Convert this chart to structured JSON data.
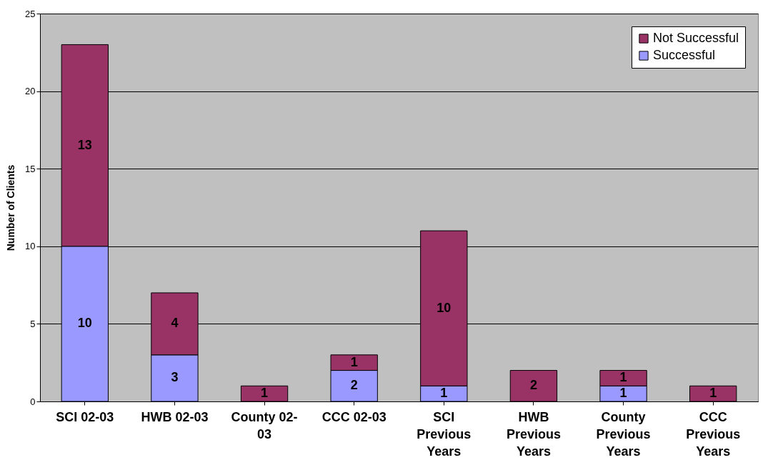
{
  "chart_data": {
    "type": "bar",
    "stacked": true,
    "ylabel": "Number of Clients",
    "categories": [
      "SCI 02-03",
      "HWB 02-03",
      "County 02-03",
      "CCC 02-03",
      "SCI Previous Years",
      "HWB Previous Years",
      "County Previous Years",
      "CCC Previous Years"
    ],
    "series": [
      {
        "name": "Successful",
        "color": "#9999ff",
        "values": [
          10,
          3,
          0,
          2,
          1,
          0,
          1,
          0
        ],
        "value_labels": [
          "10",
          "3",
          null,
          "2",
          "1",
          null,
          "1",
          null
        ]
      },
      {
        "name": "Not Successful",
        "color": "#993366",
        "values": [
          13,
          4,
          1,
          1,
          10,
          2,
          1,
          1
        ],
        "value_labels": [
          "13",
          "4",
          "1",
          "1",
          "10",
          "2",
          "1",
          "1"
        ]
      }
    ],
    "ylim": [
      0,
      25
    ],
    "yticks": [
      0,
      5,
      10,
      15,
      20,
      25
    ],
    "grid": "y",
    "legend": "top right"
  }
}
